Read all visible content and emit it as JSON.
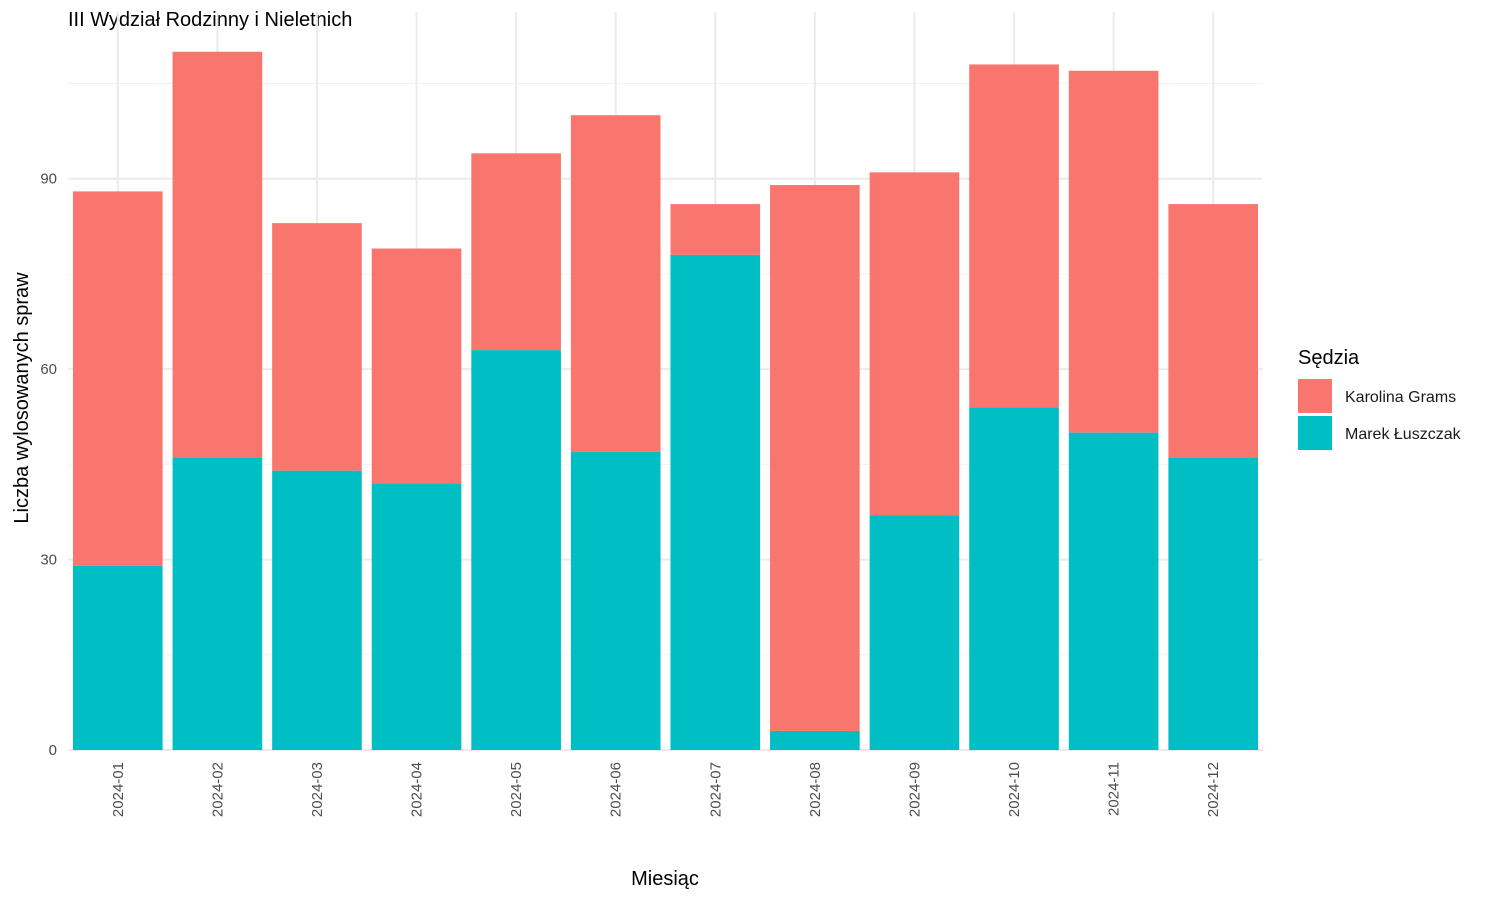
{
  "chart_data": {
    "type": "bar",
    "stacked": true,
    "title": "III Wydział Rodzinny i Nieletnich",
    "xlabel": "Miesiąc",
    "ylabel": "Liczba wylosowanych spraw",
    "categories": [
      "2024-01",
      "2024-02",
      "2024-03",
      "2024-04",
      "2024-05",
      "2024-06",
      "2024-07",
      "2024-08",
      "2024-09",
      "2024-10",
      "2024-11",
      "2024-12"
    ],
    "series": [
      {
        "name": "Marek Łuszczak",
        "color": "#00BFC4",
        "values": [
          29,
          46,
          44,
          42,
          63,
          47,
          78,
          3,
          37,
          54,
          50,
          46
        ]
      },
      {
        "name": "Karolina Grams",
        "color": "#F8766D",
        "values": [
          59,
          64,
          39,
          37,
          31,
          53,
          8,
          86,
          54,
          54,
          57,
          40
        ]
      }
    ],
    "ylim": [
      0,
      115
    ],
    "yticks": [
      0,
      30,
      60,
      90
    ],
    "grid": true,
    "legend": {
      "title": "Sędzia",
      "position": "right",
      "order": [
        "Karolina Grams",
        "Marek Łuszczak"
      ]
    }
  }
}
